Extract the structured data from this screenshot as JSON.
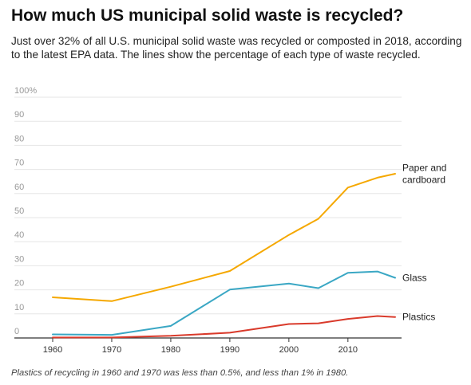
{
  "title": "How much US municipal solid waste is recycled?",
  "subtitle": "Just over 32% of all U.S. municipal solid waste was recycled or composted in 2018, according to the latest EPA data. The lines show the percentage of each type of waste recycled.",
  "footnote": "Plastics of recycling in 1960 and 1970 was less than 0.5%, and less than 1% in 1980.",
  "chart_data": {
    "type": "line",
    "title": "How much US municipal solid waste is recycled?",
    "xlabel": "",
    "ylabel": "",
    "xlim": [
      1960,
      2018
    ],
    "ylim": [
      0,
      100
    ],
    "x_ticks": [
      1960,
      1970,
      1980,
      1990,
      2000,
      2010
    ],
    "y_ticks": [
      0,
      10,
      20,
      30,
      40,
      50,
      60,
      70,
      80,
      90,
      100
    ],
    "y_tick_labels": [
      "0",
      "10",
      "20",
      "30",
      "40",
      "50",
      "60",
      "70",
      "80",
      "90",
      "100%"
    ],
    "grid": true,
    "legend": "direct labels at line ends",
    "series": [
      {
        "name": "Paper and cardboard",
        "label_lines": [
          "Paper and",
          "cardboard"
        ],
        "color": "#f5a800",
        "x": [
          1960,
          1970,
          1980,
          1990,
          2000,
          2005,
          2010,
          2015,
          2018
        ],
        "values": [
          16.9,
          15.3,
          21.3,
          27.8,
          42.8,
          49.5,
          62.5,
          66.6,
          68.2
        ]
      },
      {
        "name": "Glass",
        "label_lines": [
          "Glass"
        ],
        "color": "#3aa7c4",
        "x": [
          1960,
          1970,
          1980,
          1990,
          2000,
          2005,
          2010,
          2015,
          2018
        ],
        "values": [
          1.5,
          1.3,
          5.0,
          20.1,
          22.6,
          20.7,
          27.1,
          27.6,
          25.0
        ]
      },
      {
        "name": "Plastics",
        "label_lines": [
          "Plastics"
        ],
        "color": "#d93a2b",
        "x": [
          1960,
          1970,
          1980,
          1990,
          2000,
          2005,
          2010,
          2015,
          2018
        ],
        "values": [
          0.2,
          0.2,
          0.9,
          2.2,
          5.8,
          6.1,
          7.9,
          9.1,
          8.7
        ]
      }
    ]
  }
}
